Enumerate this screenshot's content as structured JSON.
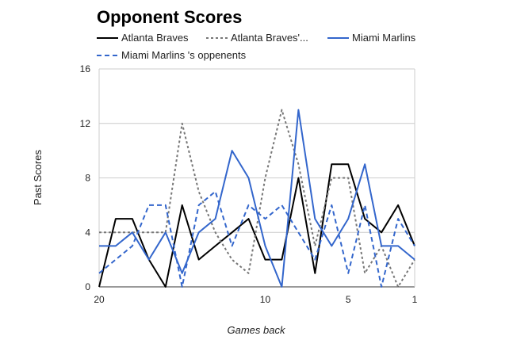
{
  "chart_data": {
    "type": "line",
    "title": "Opponent Scores",
    "xlabel": "Games back",
    "ylabel": "Past Scores",
    "x": [
      20,
      19,
      18,
      17,
      16,
      15,
      14,
      13,
      12,
      11,
      10,
      9,
      8,
      7,
      6,
      5,
      4,
      3,
      2,
      1
    ],
    "xlim": [
      20,
      1
    ],
    "ylim": [
      0,
      16
    ],
    "xticks": [
      "20",
      "10",
      "5",
      "1"
    ],
    "yticks": [
      "0",
      "4",
      "8",
      "12",
      "16"
    ],
    "grid": true,
    "legend_position": "top",
    "series": [
      {
        "name": "Atlanta Braves",
        "color": "#000000",
        "dash": "solid",
        "values": [
          0,
          5,
          5,
          2,
          0,
          6,
          2,
          3,
          4,
          5,
          2,
          2,
          8,
          1,
          9,
          9,
          5,
          4,
          6,
          3
        ]
      },
      {
        "name": "Atlanta Braves'...",
        "color": "#777777",
        "dash": "dotted",
        "values": [
          4,
          4,
          4,
          4,
          4,
          12,
          7,
          4,
          2,
          1,
          8,
          13,
          9,
          3,
          8,
          8,
          1,
          3,
          0,
          2
        ]
      },
      {
        "name": "Miami Marlins",
        "color": "#3366cc",
        "dash": "solid",
        "values": [
          3,
          3,
          4,
          2,
          4,
          1,
          4,
          5,
          10,
          8,
          3,
          0,
          13,
          5,
          3,
          5,
          9,
          3,
          3,
          2
        ]
      },
      {
        "name": "Miami Marlins 's oppenents",
        "color": "#3366cc",
        "dash": "dashed",
        "values": [
          1,
          2,
          3,
          6,
          6,
          0,
          6,
          7,
          3,
          6,
          5,
          6,
          4,
          2,
          6,
          1,
          6,
          0,
          5,
          3
        ]
      }
    ]
  }
}
